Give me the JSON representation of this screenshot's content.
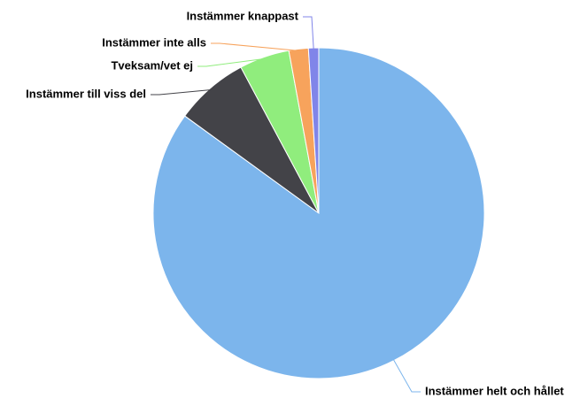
{
  "chart_data": {
    "type": "pie",
    "categories": [
      "Instämmer helt och hållet",
      "Instämmer till viss del",
      "Tveksam/vet ej",
      "Instämmer inte alls",
      "Instämmer knappast"
    ],
    "values": [
      85,
      7.2,
      4.9,
      1.9,
      1.0
    ],
    "colors": [
      "#7cb5ec",
      "#434348",
      "#90ed7d",
      "#f7a35c",
      "#8085e9"
    ]
  }
}
